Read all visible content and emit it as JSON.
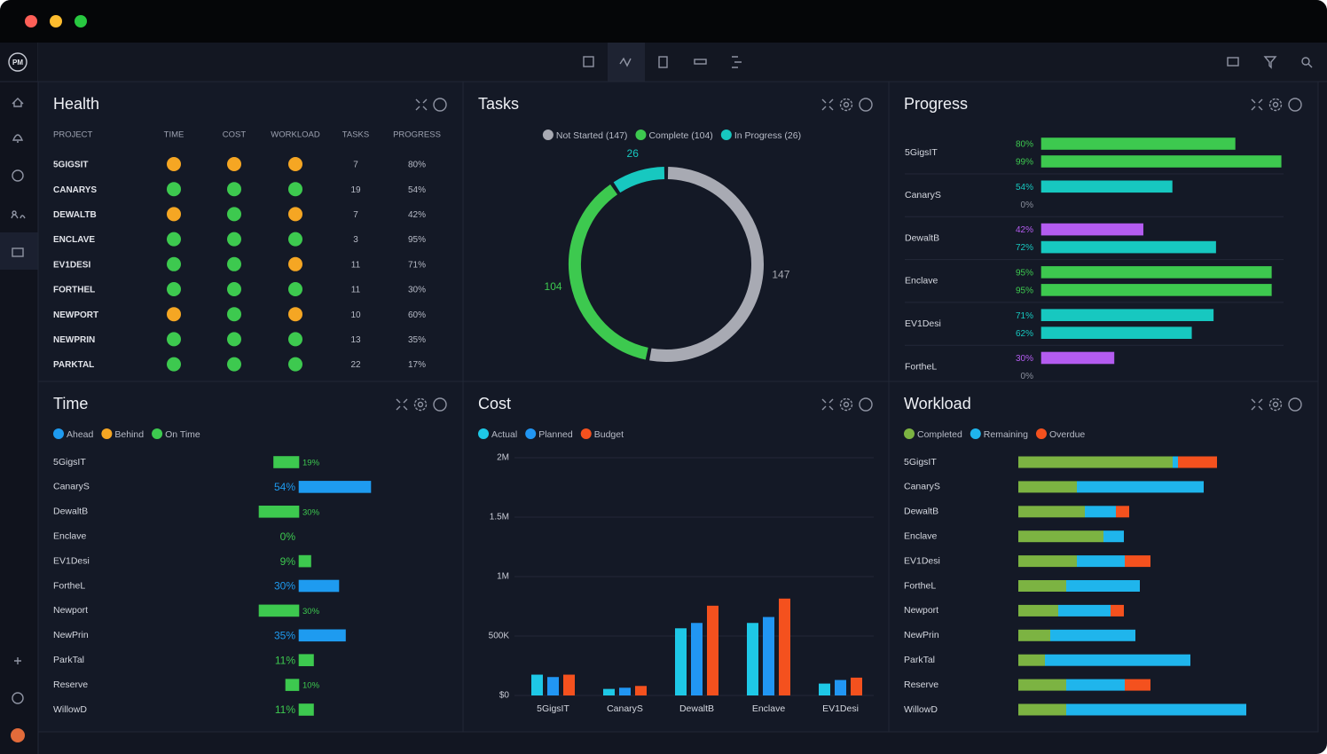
{
  "app": {
    "logo": "PM"
  },
  "health": {
    "title": "Health",
    "columns": [
      "PROJECT",
      "TIME",
      "COST",
      "WORKLOAD",
      "TASKS",
      "PROGRESS"
    ],
    "status_colors": {
      "on_track": "#3dc94f",
      "at_risk": "#f5a623"
    },
    "rows": [
      [
        "5GIGSIT",
        "at_risk",
        "at_risk",
        "at_risk",
        7,
        "80%"
      ],
      [
        "CANARYS",
        "on_track",
        "on_track",
        "on_track",
        19,
        "54%"
      ],
      [
        "DEWALTB",
        "at_risk",
        "on_track",
        "at_risk",
        7,
        "42%"
      ],
      [
        "ENCLAVE",
        "on_track",
        "on_track",
        "on_track",
        3,
        "95%"
      ],
      [
        "EV1DESI",
        "on_track",
        "on_track",
        "at_risk",
        11,
        "71%"
      ],
      [
        "FORTHEL",
        "on_track",
        "on_track",
        "on_track",
        11,
        "30%"
      ],
      [
        "NEWPORT",
        "at_risk",
        "on_track",
        "at_risk",
        10,
        "60%"
      ],
      [
        "NEWPRIN",
        "on_track",
        "on_track",
        "on_track",
        13,
        "35%"
      ],
      [
        "PARKTAL",
        "on_track",
        "on_track",
        "on_track",
        22,
        "17%"
      ]
    ]
  },
  "chart_data": [
    {
      "type": "pie",
      "title": "Tasks",
      "categories": [
        "Not Started (147)",
        "Complete (104)",
        "In Progress (26)"
      ],
      "values": [
        147,
        104,
        26
      ],
      "colors": [
        "#a8aab3",
        "#3dc94f",
        "#17c8c0"
      ]
    },
    {
      "type": "progress_bar",
      "title": "Progress",
      "categories": [
        "5GigsIT",
        "CanaryS",
        "DewaltB",
        "Enclave",
        "EV1Desi",
        "FortheL"
      ],
      "xlim": [
        0,
        100
      ],
      "series": [
        {
          "values": [
            80,
            54,
            42,
            95,
            71,
            30
          ],
          "value_labels": [
            "80%",
            "54%",
            "42%",
            "95%",
            "71%",
            "30%"
          ],
          "colors": [
            "#3dc94f",
            "#17c8c0",
            "#b45cf0",
            "#3dc94f",
            "#17c8c0",
            "#b45cf0"
          ]
        },
        {
          "values": [
            99,
            0,
            72,
            95,
            62,
            0
          ],
          "value_labels": [
            "99%",
            "0%",
            "72%",
            "95%",
            "62%",
            "0%"
          ],
          "colors": [
            "#3dc94f",
            "#8a8f9c",
            "#17c8c0",
            "#3dc94f",
            "#17c8c0",
            "#8a8f9c"
          ]
        }
      ]
    },
    {
      "type": "diverging_bar",
      "title": "Time",
      "legend": [
        {
          "name": "Ahead",
          "color": "#1e9bf0"
        },
        {
          "name": "Behind",
          "color": "#f5a623"
        },
        {
          "name": "On Time",
          "color": "#3dc94f"
        }
      ],
      "categories": [
        "5GigsIT",
        "CanaryS",
        "DewaltB",
        "Enclave",
        "EV1Desi",
        "FortheL",
        "Newport",
        "NewPrin",
        "ParkTal",
        "Reserve",
        "WillowD"
      ],
      "values": [
        19,
        54,
        30,
        0,
        9,
        30,
        30,
        35,
        11,
        10,
        11
      ],
      "value_labels": [
        "19%",
        "54%",
        "30%",
        "0%",
        "9%",
        "30%",
        "30%",
        "35%",
        "11%",
        "10%",
        "11%"
      ],
      "sides": [
        "left",
        "right",
        "left",
        "right",
        "right",
        "right",
        "left",
        "right",
        "right",
        "left",
        "right"
      ],
      "colors": [
        "#3dc94f",
        "#1e9bf0",
        "#3dc94f",
        "#3dc94f",
        "#3dc94f",
        "#1e9bf0",
        "#3dc94f",
        "#1e9bf0",
        "#3dc94f",
        "#3dc94f",
        "#3dc94f"
      ],
      "xlim": [
        0,
        100
      ]
    },
    {
      "type": "bar",
      "title": "Cost",
      "categories": [
        "5GigsIT",
        "CanaryS",
        "DewaltB",
        "Enclave",
        "EV1Desi"
      ],
      "series": [
        {
          "name": "Actual",
          "color": "#1ec8e6",
          "values": [
            175000,
            55000,
            565000,
            610000,
            100000
          ]
        },
        {
          "name": "Planned",
          "color": "#2196f3",
          "values": [
            155000,
            65000,
            610000,
            660000,
            130000
          ]
        },
        {
          "name": "Budget",
          "color": "#f4511e",
          "values": [
            175000,
            80000,
            755000,
            815000,
            150000
          ]
        }
      ],
      "ylim": [
        0,
        2000000
      ],
      "yticks": [
        {
          "value": 0,
          "label": "$0"
        },
        {
          "value": 500000,
          "label": "500K"
        },
        {
          "value": 1000000,
          "label": "1M"
        },
        {
          "value": 1500000,
          "label": "1.5M"
        },
        {
          "value": 2000000,
          "label": "2M"
        }
      ],
      "grid": true
    },
    {
      "type": "stacked_bar",
      "title": "Workload",
      "categories": [
        "5GigsIT",
        "CanaryS",
        "DewaltB",
        "Enclave",
        "EV1Desi",
        "FortheL",
        "Newport",
        "NewPrin",
        "ParkTal",
        "Reserve",
        "WillowD"
      ],
      "series": [
        {
          "name": "Completed",
          "color": "#7cb342",
          "values": [
            174,
            66,
            75,
            96,
            66,
            54,
            45,
            36,
            30,
            54,
            54
          ]
        },
        {
          "name": "Remaining",
          "color": "#1fb5ec",
          "values": [
            6,
            143,
            35,
            23,
            54,
            83,
            59,
            96,
            164,
            66,
            203
          ]
        },
        {
          "name": "Overdue",
          "color": "#f4511e",
          "values": [
            44,
            0,
            15,
            0,
            29,
            0,
            15,
            0,
            0,
            29,
            0
          ]
        }
      ],
      "xlim": [
        0,
        300
      ]
    }
  ]
}
